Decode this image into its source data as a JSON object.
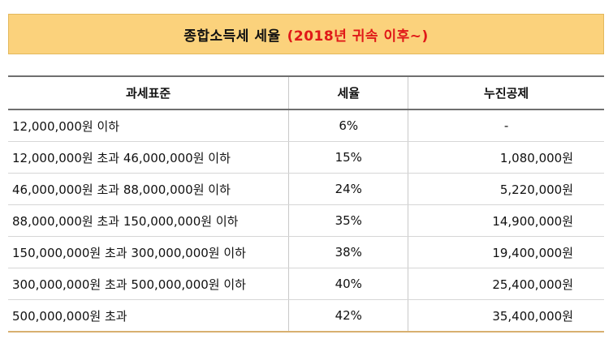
{
  "title": {
    "main": "종합소득세 세율",
    "sub": "(2018년 귀속 이후~)"
  },
  "table": {
    "headers": [
      "과세표준",
      "세율",
      "누진공제"
    ],
    "rows": [
      {
        "base": "12,000,000원 이하",
        "rate": "6%",
        "deduction": "-"
      },
      {
        "base": "12,000,000원 초과 46,000,000원 이하",
        "rate": "15%",
        "deduction": "1,080,000원"
      },
      {
        "base": "46,000,000원 초과 88,000,000원 이하",
        "rate": "24%",
        "deduction": "5,220,000원"
      },
      {
        "base": "88,000,000원 초과 150,000,000원 이하",
        "rate": "35%",
        "deduction": "14,900,000원"
      },
      {
        "base": "150,000,000원 초과 300,000,000원 이하",
        "rate": "38%",
        "deduction": "19,400,000원"
      },
      {
        "base": "300,000,000원 초과 500,000,000원 이하",
        "rate": "40%",
        "deduction": "25,400,000원"
      },
      {
        "base": "500,000,000원 초과",
        "rate": "42%",
        "deduction": "35,400,000원"
      }
    ]
  }
}
